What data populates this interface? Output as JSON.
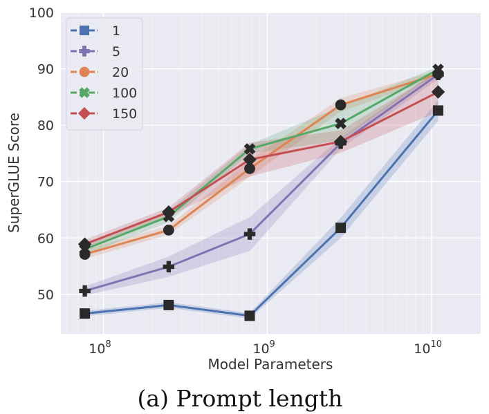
{
  "chart_data": {
    "type": "line",
    "xlabel": "Model Parameters",
    "ylabel": "SuperGLUE Score",
    "xscale": "log",
    "xlim": [
      55000000,
      20000000000
    ],
    "ylim": [
      43,
      100
    ],
    "x": [
      77000000,
      250000000,
      780000000,
      2800000000,
      11000000000
    ],
    "x_ticks": [
      {
        "value": 100000000,
        "base": "10",
        "exp": "8"
      },
      {
        "value": 1000000000,
        "base": "10",
        "exp": "9"
      },
      {
        "value": 10000000000,
        "base": "10",
        "exp": "10"
      }
    ],
    "y_ticks": [
      50,
      60,
      70,
      80,
      90,
      100
    ],
    "grid": true,
    "legend_position": "top-left",
    "series": [
      {
        "name": "1",
        "color": "#4C72B0",
        "marker": "square",
        "values": [
          46.6,
          48.1,
          46.2,
          61.8,
          82.6
        ],
        "band": [
          0.5,
          0.5,
          0.5,
          1.8,
          1.8
        ]
      },
      {
        "name": "5",
        "color": "#8172B2",
        "marker": "plus",
        "values": [
          50.6,
          54.9,
          60.7,
          76.8,
          89.0
        ],
        "band": [
          0.8,
          1.8,
          3.0,
          1.0,
          0.8
        ]
      },
      {
        "name": "20",
        "color": "#DD8452",
        "marker": "circle",
        "values": [
          57.1,
          61.4,
          72.3,
          83.6,
          89.1
        ],
        "band": [
          0.8,
          0.8,
          1.5,
          1.2,
          0.6
        ]
      },
      {
        "name": "100",
        "color": "#55A868",
        "marker": "x",
        "values": [
          58.0,
          63.8,
          75.8,
          80.3,
          89.9
        ],
        "band": [
          1.0,
          1.0,
          0.8,
          3.0,
          0.5
        ]
      },
      {
        "name": "150",
        "color": "#C44E52",
        "marker": "diamond",
        "values": [
          58.9,
          64.6,
          73.9,
          77.1,
          85.9
        ],
        "band": [
          0.8,
          0.8,
          3.0,
          2.0,
          3.5
        ]
      }
    ]
  },
  "caption": "(a) Prompt length"
}
